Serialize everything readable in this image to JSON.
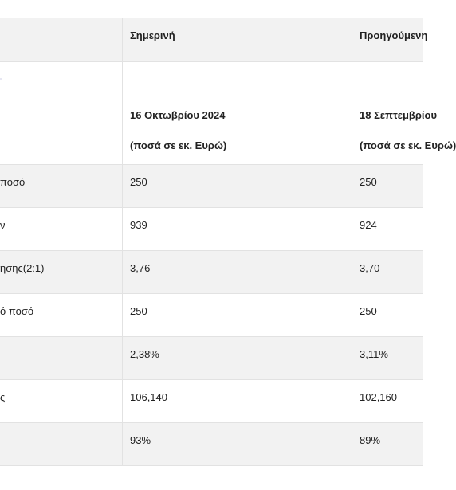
{
  "header": {
    "col0": "",
    "col1": "Σημερινή",
    "col2": "Προηγούμενη"
  },
  "dates": {
    "col1_date": "16 Οκτωβρίου  2024",
    "col1_unit": "(ποσά σε εκ. Ευρώ)",
    "col2_date": "18 Σεπτεμβρίου",
    "col2_unit": "(ποσά σε εκ. Ευρώ)"
  },
  "rows": [
    {
      "label": "ποσό",
      "current": "250",
      "previous": "250"
    },
    {
      "label": "ν",
      "current": "939",
      "previous": "924"
    },
    {
      "label": "ησης(2:1)",
      "current": "3,76",
      "previous": "3,70"
    },
    {
      "label": "ό ποσό",
      "current": "250",
      "previous": "250"
    },
    {
      "label": "",
      "current": "2,38%",
      "previous": "3,11%"
    },
    {
      "label": "ς",
      "current": "106,140",
      "previous": "102,160"
    },
    {
      "label": "",
      "current": "93%",
      "previous": "89%"
    }
  ]
}
